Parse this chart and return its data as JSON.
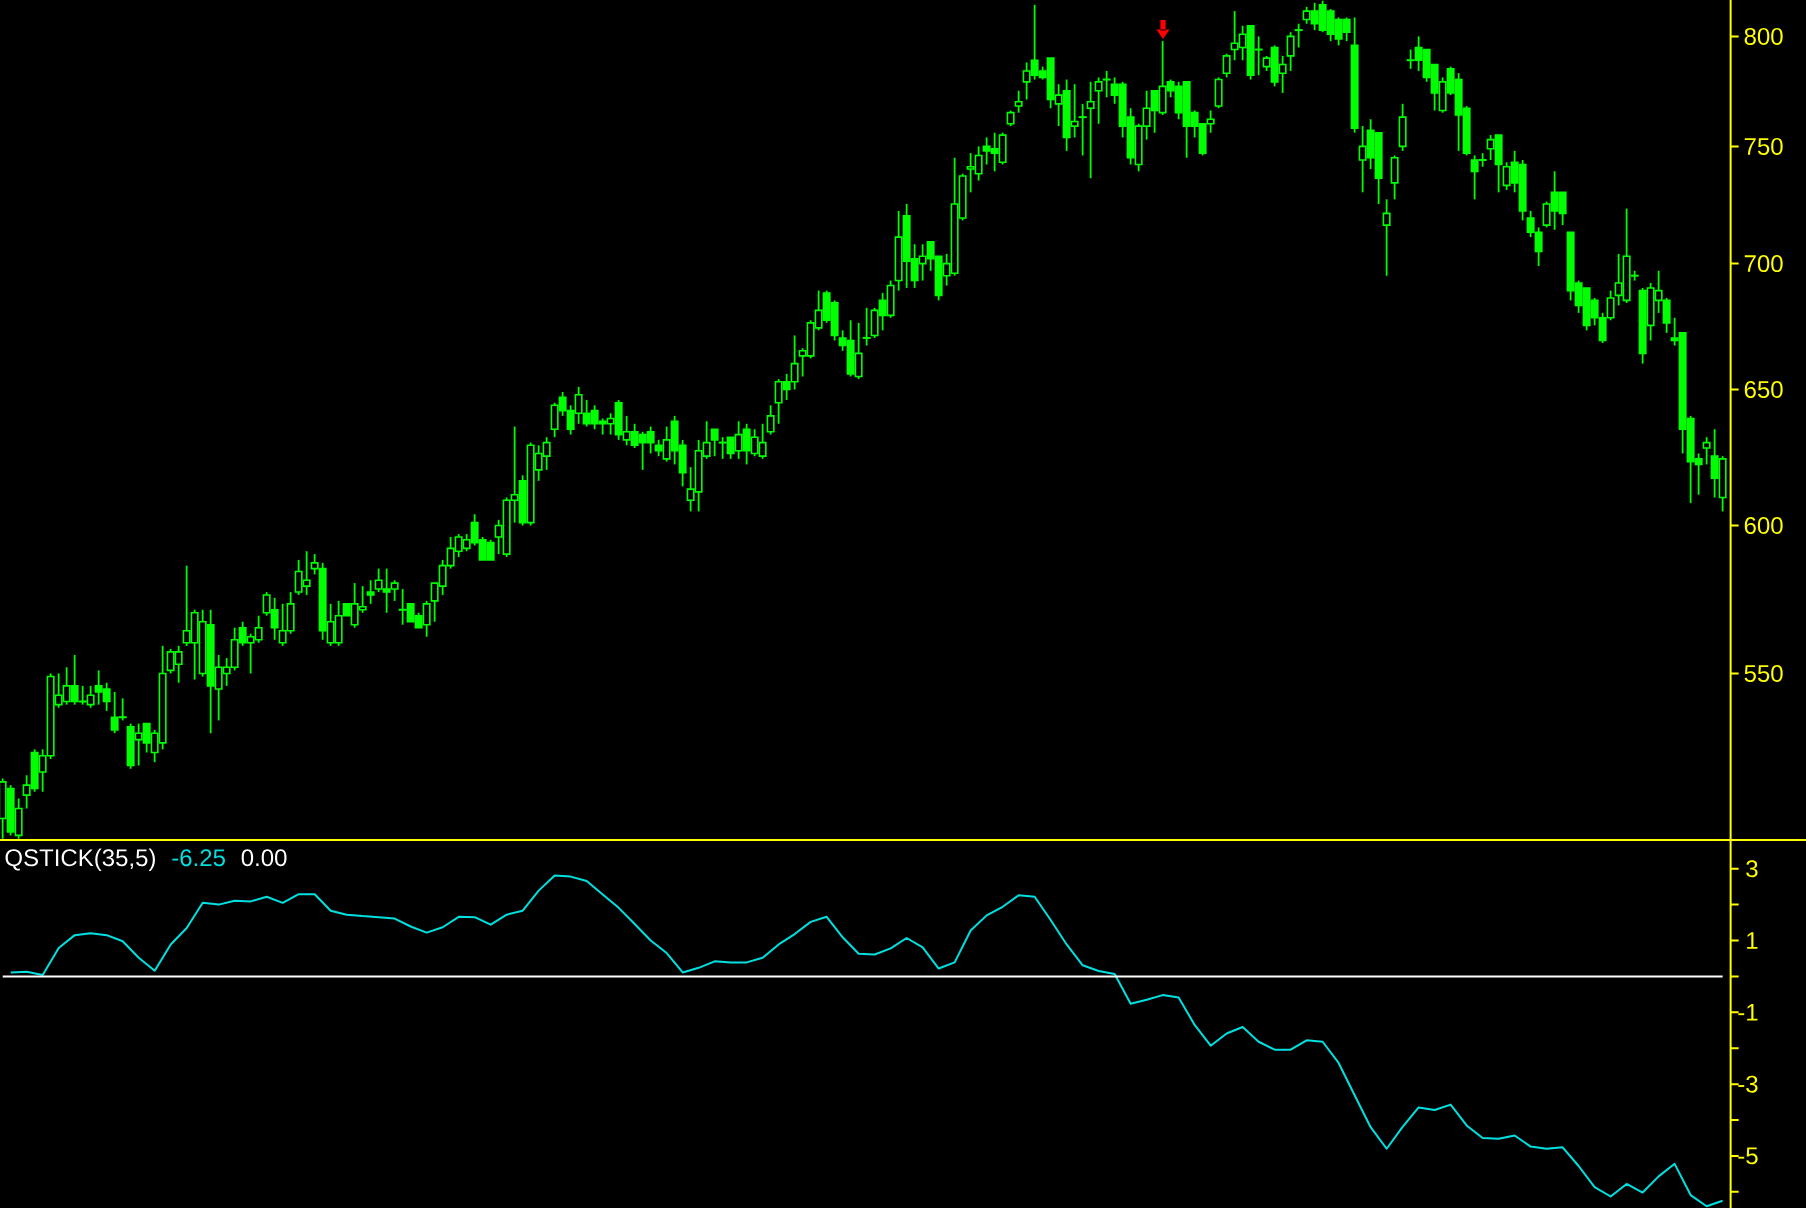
{
  "chart_data": [
    {
      "type": "candlestick",
      "categories": [
        null,
        null,
        null,
        null,
        null,
        null,
        null,
        null,
        null,
        null,
        null,
        null,
        null,
        null,
        null,
        null,
        null,
        null,
        null,
        null,
        null,
        null,
        null,
        null,
        null,
        null,
        null,
        null,
        null,
        null,
        null,
        null,
        null,
        null,
        null,
        null,
        null,
        null,
        null,
        null,
        null,
        null,
        null,
        null,
        null,
        null,
        null,
        null,
        null,
        null,
        null,
        null,
        null,
        null,
        null,
        null,
        null,
        null,
        null,
        null,
        null,
        null,
        null,
        null,
        null,
        null,
        null,
        null,
        null,
        null,
        null,
        null,
        null,
        null,
        null,
        null,
        null,
        null,
        null,
        null,
        null,
        null,
        null,
        null,
        null,
        null,
        null,
        null,
        null,
        null,
        null,
        null,
        null,
        null,
        null,
        null,
        null,
        null,
        null,
        null,
        null,
        null,
        null,
        null,
        null,
        null,
        null,
        null,
        null,
        null,
        null,
        null,
        null,
        null,
        null,
        null,
        null,
        null,
        null,
        null,
        null,
        null,
        null,
        null,
        null,
        null,
        null,
        null,
        null,
        null,
        null,
        null,
        null,
        null,
        null,
        null,
        null,
        null,
        null,
        null,
        null,
        null,
        null,
        null,
        null,
        null,
        null,
        null,
        null,
        null,
        null,
        null,
        null,
        null,
        null,
        null,
        null,
        null,
        null,
        null,
        null,
        null,
        null,
        null,
        null,
        null,
        null,
        null,
        null,
        null,
        null,
        null,
        null,
        null,
        null,
        null,
        null,
        null,
        null,
        null,
        null,
        null,
        null,
        null,
        null,
        null,
        null,
        null,
        null,
        null,
        null,
        null,
        null,
        null,
        null,
        null,
        null,
        null,
        null,
        null,
        null,
        null,
        null,
        null,
        null,
        null,
        null,
        null,
        null,
        null,
        null,
        null,
        null,
        null,
        null,
        null
      ],
      "ohlc": [
        [
          505,
          517,
          499,
          516
        ],
        [
          514,
          515,
          500,
          501
        ],
        [
          500,
          511,
          499,
          508
        ],
        [
          512,
          518,
          508,
          515
        ],
        [
          525,
          526,
          513,
          514
        ],
        [
          519,
          526,
          513,
          524
        ],
        [
          524,
          550,
          523,
          549
        ],
        [
          540,
          550,
          539,
          543
        ],
        [
          541,
          552,
          540,
          546
        ],
        [
          546,
          556,
          540,
          541
        ],
        [
          541,
          546,
          540,
          541
        ],
        [
          540,
          546,
          539,
          543
        ],
        [
          546,
          551,
          540,
          544
        ],
        [
          545,
          547,
          538,
          541
        ],
        [
          536,
          544,
          531,
          532
        ],
        [
          536,
          542,
          535,
          536
        ],
        [
          533,
          534,
          520,
          521
        ],
        [
          529,
          534,
          521,
          531
        ],
        [
          534,
          534,
          525,
          528
        ],
        [
          525,
          532,
          522,
          531
        ],
        [
          528,
          559,
          526,
          550
        ],
        [
          551,
          558,
          550,
          557
        ],
        [
          553,
          559,
          547,
          557
        ],
        [
          560,
          586,
          559,
          564
        ],
        [
          560,
          571,
          548,
          570
        ],
        [
          550,
          571,
          549,
          567
        ],
        [
          566,
          571,
          531,
          546
        ],
        [
          545,
          556,
          535,
          552
        ],
        [
          550,
          555,
          546,
          552
        ],
        [
          552,
          565,
          551,
          561
        ],
        [
          565,
          567,
          559,
          560
        ],
        [
          560,
          563,
          550,
          562
        ],
        [
          561,
          569,
          560,
          565
        ],
        [
          570,
          577,
          569,
          576
        ],
        [
          571,
          575,
          561,
          565
        ],
        [
          560,
          573,
          559,
          564
        ],
        [
          564,
          577,
          563,
          573
        ],
        [
          577,
          588,
          576,
          584
        ],
        [
          579,
          591,
          576,
          581
        ],
        [
          585,
          590,
          583,
          587
        ],
        [
          585,
          587,
          561,
          564
        ],
        [
          560,
          573,
          559,
          567
        ],
        [
          560,
          574,
          559,
          569
        ],
        [
          573,
          573,
          569,
          569
        ],
        [
          566,
          580,
          565,
          573
        ],
        [
          571,
          579,
          570,
          572
        ],
        [
          577,
          581,
          573,
          576
        ],
        [
          578,
          585,
          577,
          581
        ],
        [
          578,
          585,
          570,
          577
        ],
        [
          578,
          581,
          574,
          580
        ],
        [
          571,
          578,
          566,
          571
        ],
        [
          573,
          573,
          567,
          567
        ],
        [
          569,
          570,
          565,
          565
        ],
        [
          566,
          574,
          562,
          573
        ],
        [
          574,
          580,
          567,
          580
        ],
        [
          579,
          588,
          576,
          586
        ],
        [
          586,
          596,
          585,
          592
        ],
        [
          591,
          597,
          589,
          596
        ],
        [
          592,
          597,
          591,
          595
        ],
        [
          601,
          604,
          593,
          594
        ],
        [
          595,
          596,
          588,
          588
        ],
        [
          594,
          595,
          588,
          588
        ],
        [
          596,
          602,
          590,
          600
        ],
        [
          590,
          610,
          589,
          609
        ],
        [
          609,
          636,
          601,
          611
        ],
        [
          616,
          618,
          600,
          601
        ],
        [
          601,
          630,
          600,
          629
        ],
        [
          620,
          629,
          616,
          626
        ],
        [
          625,
          632,
          620,
          630
        ],
        [
          635,
          645,
          632,
          644
        ],
        [
          647,
          649,
          640,
          642
        ],
        [
          642,
          644,
          633,
          635
        ],
        [
          641,
          651,
          637,
          648
        ],
        [
          641,
          646,
          636,
          637
        ],
        [
          642,
          644,
          635,
          637
        ],
        [
          638,
          639,
          633,
          637
        ],
        [
          637,
          641,
          633,
          639
        ],
        [
          645,
          646,
          631,
          633
        ],
        [
          631,
          640,
          629,
          634
        ],
        [
          634,
          637,
          628,
          629
        ],
        [
          633,
          634,
          620,
          630
        ],
        [
          634,
          636,
          626,
          630
        ],
        [
          629,
          631,
          625,
          627
        ],
        [
          624,
          636,
          623,
          631
        ],
        [
          638,
          640,
          622,
          627
        ],
        [
          629,
          631,
          614,
          619
        ],
        [
          609,
          621,
          605,
          613
        ],
        [
          612,
          631,
          605,
          627
        ],
        [
          625,
          638,
          624,
          630
        ],
        [
          635,
          635,
          625,
          631
        ],
        [
          630,
          632,
          624,
          630
        ],
        [
          632,
          632,
          624,
          626
        ],
        [
          627,
          638,
          624,
          633
        ],
        [
          635,
          637,
          622,
          627
        ],
        [
          626,
          635,
          625,
          632
        ],
        [
          625,
          637,
          624,
          630
        ],
        [
          634,
          644,
          633,
          640
        ],
        [
          645,
          654,
          637,
          653
        ],
        [
          653,
          656,
          646,
          650
        ],
        [
          653,
          671,
          650,
          660
        ],
        [
          663,
          666,
          655,
          665
        ],
        [
          663,
          677,
          662,
          676
        ],
        [
          674,
          689,
          673,
          681
        ],
        [
          688,
          689,
          676,
          677
        ],
        [
          684,
          685,
          669,
          671
        ],
        [
          670,
          673,
          665,
          667
        ],
        [
          669,
          677,
          655,
          656
        ],
        [
          655,
          676,
          654,
          664
        ],
        [
          670,
          682,
          667,
          670
        ],
        [
          671,
          682,
          670,
          681
        ],
        [
          685,
          688,
          673,
          679
        ],
        [
          679,
          693,
          678,
          691
        ],
        [
          693,
          722,
          689,
          711
        ],
        [
          720,
          725,
          690,
          701
        ],
        [
          702,
          708,
          690,
          693
        ],
        [
          700,
          708,
          693,
          703
        ],
        [
          709,
          709,
          697,
          702
        ],
        [
          703,
          703,
          685,
          687
        ],
        [
          695,
          704,
          691,
          700
        ],
        [
          696,
          745,
          695,
          725
        ],
        [
          719,
          738,
          718,
          737
        ],
        [
          740,
          747,
          730,
          741
        ],
        [
          738,
          750,
          735,
          746
        ],
        [
          750,
          754,
          742,
          748
        ],
        [
          749,
          756,
          739,
          747
        ],
        [
          743,
          756,
          742,
          755
        ],
        [
          760,
          766,
          759,
          765
        ],
        [
          768,
          775,
          765,
          770
        ],
        [
          779,
          788,
          771,
          784
        ],
        [
          789,
          815,
          780,
          782
        ],
        [
          784,
          786,
          780,
          781
        ],
        [
          790,
          790,
          767,
          771
        ],
        [
          769,
          778,
          759,
          773
        ],
        [
          775,
          780,
          748,
          754
        ],
        [
          759,
          778,
          754,
          761
        ],
        [
          763,
          769,
          746,
          763
        ],
        [
          767,
          779,
          736,
          770
        ],
        [
          775,
          781,
          760,
          779
        ],
        [
          780,
          784,
          772,
          780
        ],
        [
          778,
          781,
          769,
          773
        ],
        [
          778,
          779,
          754,
          759
        ],
        [
          763,
          767,
          742,
          745
        ],
        [
          742,
          760,
          739,
          759
        ],
        [
          759,
          775,
          753,
          767
        ],
        [
          775,
          775,
          756,
          766
        ],
        [
          765,
          798,
          764,
          777
        ],
        [
          779,
          780,
          772,
          775
        ],
        [
          777,
          779,
          762,
          765
        ],
        [
          779,
          779,
          745,
          759
        ],
        [
          765,
          766,
          754,
          759
        ],
        [
          760,
          760,
          746,
          747
        ],
        [
          760,
          766,
          756,
          762
        ],
        [
          768,
          781,
          767,
          780
        ],
        [
          783,
          792,
          781,
          791
        ],
        [
          794,
          812,
          789,
          797
        ],
        [
          795,
          805,
          789,
          801
        ],
        [
          805,
          805,
          780,
          782
        ],
        [
          794,
          800,
          782,
          794
        ],
        [
          786,
          791,
          784,
          790
        ],
        [
          795,
          796,
          777,
          779
        ],
        [
          783,
          791,
          774,
          787
        ],
        [
          791,
          802,
          784,
          800
        ],
        [
          803,
          806,
          795,
          803
        ],
        [
          808,
          814,
          806,
          812
        ],
        [
          812,
          816,
          803,
          806
        ],
        [
          815,
          817,
          802,
          803
        ],
        [
          812,
          813,
          798,
          801
        ],
        [
          808,
          809,
          796,
          799
        ],
        [
          808,
          809,
          798,
          802
        ],
        [
          796,
          809,
          756,
          758
        ],
        [
          744,
          759,
          730,
          750
        ],
        [
          757,
          762,
          740,
          745
        ],
        [
          756,
          756,
          725,
          736
        ],
        [
          716,
          727,
          695,
          721
        ],
        [
          734,
          746,
          727,
          745
        ],
        [
          750,
          769,
          748,
          763
        ],
        [
          789,
          794,
          785,
          789
        ],
        [
          795,
          800,
          784,
          789
        ],
        [
          794,
          794,
          779,
          781
        ],
        [
          787,
          787,
          766,
          774
        ],
        [
          766,
          781,
          765,
          779
        ],
        [
          785,
          786,
          773,
          774
        ],
        [
          780,
          783,
          748,
          764
        ],
        [
          767,
          768,
          746,
          747
        ],
        [
          744,
          746,
          727,
          739
        ],
        [
          744,
          747,
          741,
          744
        ],
        [
          749,
          755,
          744,
          753
        ],
        [
          755,
          755,
          730,
          742
        ],
        [
          733,
          743,
          731,
          741
        ],
        [
          743,
          748,
          730,
          734
        ],
        [
          742,
          744,
          718,
          722
        ],
        [
          719,
          722,
          711,
          713
        ],
        [
          713,
          715,
          699,
          705
        ],
        [
          716,
          726,
          715,
          725
        ],
        [
          730,
          739,
          714,
          722
        ],
        [
          730,
          730,
          716,
          721
        ],
        [
          713,
          713,
          685,
          689
        ],
        [
          692,
          693,
          680,
          683
        ],
        [
          690,
          690,
          673,
          675
        ],
        [
          685,
          686,
          675,
          678
        ],
        [
          678,
          680,
          668,
          669
        ],
        [
          678,
          689,
          677,
          686
        ],
        [
          687,
          704,
          683,
          692
        ],
        [
          685,
          723,
          684,
          703
        ],
        [
          695,
          697,
          693,
          695
        ],
        [
          689,
          690,
          660,
          664
        ],
        [
          675,
          692,
          669,
          690
        ],
        [
          685,
          697,
          680,
          689
        ],
        [
          685,
          686,
          672,
          676
        ],
        [
          670,
          678,
          667,
          669
        ],
        [
          672,
          672,
          626,
          635
        ],
        [
          639,
          640,
          608,
          623
        ],
        [
          624,
          626,
          611,
          622
        ],
        [
          628,
          632,
          622,
          630
        ],
        [
          625,
          635,
          610,
          617
        ],
        [
          610,
          625,
          605,
          624
        ]
      ],
      "color": "#00ff00",
      "log": "y",
      "ylim": [
        498.7,
        817.4
      ],
      "yticks": [
        550,
        600,
        650,
        700,
        750,
        800
      ],
      "tick_labels": "y"
    },
    {
      "type": "line",
      "title": "QSTICK(35,5)",
      "categories": [
        null,
        null,
        null,
        null,
        null,
        null,
        null,
        null,
        null,
        null,
        null,
        null,
        null,
        null,
        null,
        null,
        null,
        null,
        null,
        null,
        null,
        null,
        null,
        null,
        null,
        null,
        null,
        null,
        null,
        null,
        null,
        null,
        null,
        null,
        null,
        null,
        null,
        null,
        null,
        null,
        null,
        null,
        null,
        null,
        null,
        null,
        null,
        null,
        null,
        null,
        null,
        null,
        null,
        null,
        null,
        null,
        null,
        null,
        null,
        null,
        null,
        null,
        null,
        null,
        null,
        null,
        null,
        null,
        null,
        null,
        null,
        null,
        null,
        null,
        null,
        null,
        null,
        null,
        null,
        null,
        null,
        null,
        null,
        null,
        null,
        null,
        null,
        null,
        null,
        null,
        null,
        null,
        null,
        null,
        null,
        null,
        null,
        null,
        null,
        null,
        null,
        null,
        null,
        null,
        null,
        null,
        null,
        null
      ],
      "series": [
        {
          "color": "#00e0e0",
          "values": [
            0.11,
            0.13,
            0.04,
            0.79,
            1.15,
            1.2,
            1.15,
            0.98,
            0.52,
            0.16,
            0.89,
            1.35,
            2.05,
            2.0,
            2.11,
            2.09,
            2.22,
            2.05,
            2.29,
            2.29,
            1.83,
            1.72,
            1.68,
            1.65,
            1.61,
            1.39,
            1.22,
            1.37,
            1.66,
            1.65,
            1.44,
            1.72,
            1.83,
            2.39,
            2.81,
            2.78,
            2.66,
            2.28,
            1.91,
            1.46,
            1.0,
            0.65,
            0.11,
            0.24,
            0.42,
            0.39,
            0.39,
            0.52,
            0.89,
            1.18,
            1.52,
            1.66,
            1.09,
            0.63,
            0.61,
            0.78,
            1.07,
            0.81,
            0.22,
            0.39,
            1.28,
            1.7,
            1.94,
            2.26,
            2.22,
            1.57,
            0.89,
            0.31,
            0.15,
            0.07,
            -0.76,
            -0.65,
            -0.52,
            -0.59,
            -1.35,
            -1.93,
            -1.59,
            -1.41,
            -1.82,
            -2.04,
            -2.04,
            -1.78,
            -1.82,
            -2.41,
            -3.31,
            -4.2,
            -4.8,
            -4.19,
            -3.65,
            -3.72,
            -3.57,
            -4.15,
            -4.5,
            -4.52,
            -4.43,
            -4.74,
            -4.8,
            -4.76,
            -5.28,
            -5.87,
            -6.13,
            -5.78,
            -6.02,
            -5.57,
            -5.22,
            -6.09,
            -6.4,
            -6.25
          ]
        }
      ],
      "ylim": [
        -6.45,
        3.8
      ],
      "yticks": [
        {
          "value": -6,
          "label": null
        },
        -5,
        {
          "value": -4,
          "label": null
        },
        -3,
        {
          "value": -2,
          "label": null
        },
        -1,
        {
          "value": 0,
          "label": null
        },
        1,
        {
          "value": 2,
          "label": null
        },
        3
      ],
      "ref_lines": [
        {
          "axis": "y",
          "value": 0,
          "label": "0.00",
          "color": "#ffffff"
        }
      ],
      "annotations": [
        "-6.25"
      ],
      "tick_labels": "y"
    }
  ]
}
